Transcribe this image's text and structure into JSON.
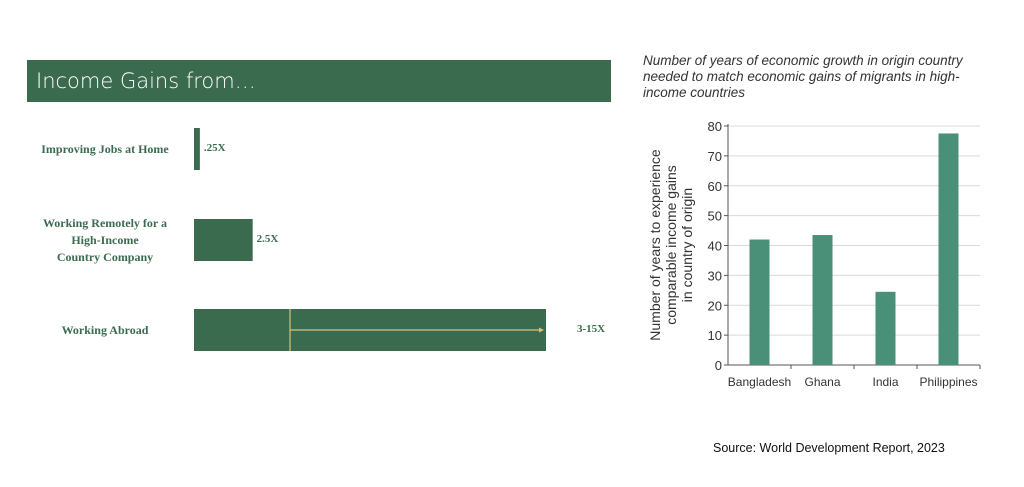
{
  "chart_data": [
    {
      "type": "bar",
      "orientation": "horizontal",
      "title": "Income Gains from…",
      "categories": [
        "Improving Jobs at Home",
        "Working Remotely for a High-Income Country Company",
        "Working Abroad"
      ],
      "category_lines": [
        [
          "Improving Jobs at Home"
        ],
        [
          "Working Remotely for a",
          "High-Income",
          "Country Company"
        ],
        [
          "Working Abroad"
        ]
      ],
      "values": [
        0.25,
        2.5,
        15
      ],
      "range_low": [
        null,
        null,
        3
      ],
      "value_labels": [
        ".25X",
        "2.5X",
        "3-15X"
      ],
      "xmax": 15,
      "color": "#3b6b4f",
      "arrow_color": "#d8c27a"
    },
    {
      "type": "bar",
      "title": "Number of years of economic growth in origin country needed to match economic gains of migrants in high-income countries",
      "categories": [
        "Bangladesh",
        "Ghana",
        "India",
        "Philippines"
      ],
      "values": [
        42,
        43.5,
        24.5,
        77.5
      ],
      "xlabel": "",
      "ylabel_lines": [
        "Number of years to experience",
        "comparable income gains",
        "in country of origin"
      ],
      "ylim": [
        0,
        80
      ],
      "yticks": [
        0,
        10,
        20,
        30,
        40,
        50,
        60,
        70,
        80
      ],
      "grid": true,
      "color": "#4a9079"
    }
  ],
  "source": "Source: World Development Report, 2023"
}
